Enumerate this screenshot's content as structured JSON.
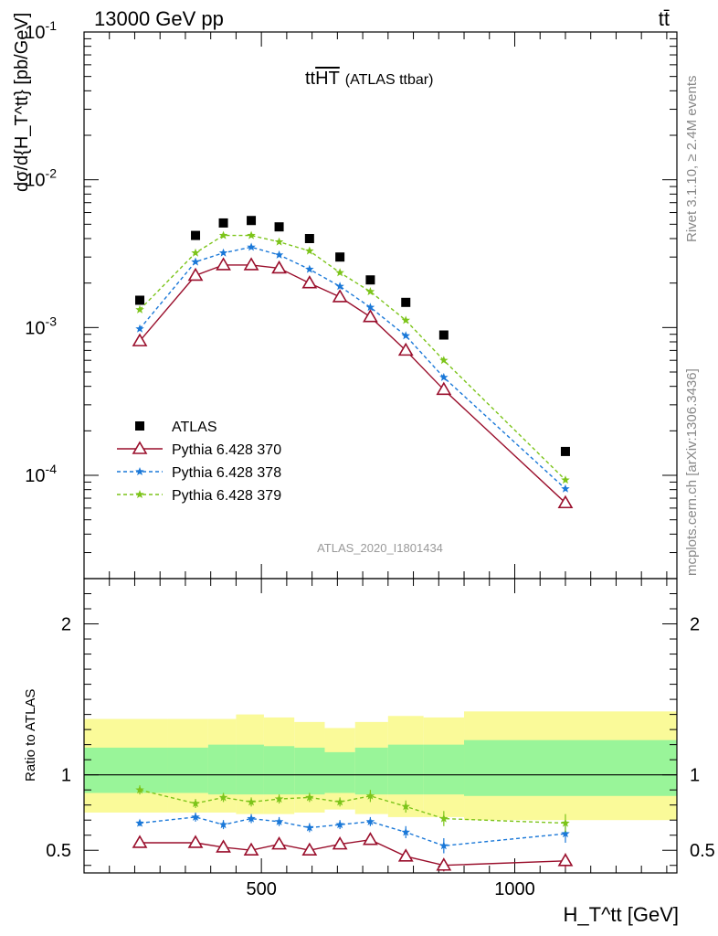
{
  "header": {
    "left": "13000 GeV pp",
    "right": "tt̄"
  },
  "plot_title": {
    "main": "tt",
    "overline": "HT",
    "sub": "(ATLAS ttbar)"
  },
  "side_text": {
    "rivet": "Rivet 3.1.10, ≥ 2.4M events",
    "mcplots": "mcplots.cern.ch [arXiv:1306.3436]"
  },
  "analysis_label": "ATLAS_2020_I1801434",
  "colors": {
    "atlas": "#000000",
    "p370": "#9a0f2c",
    "p378": "#1a78d8",
    "p379": "#7cc41a",
    "band_inner": "#99f599",
    "band_outer": "#fafa99"
  },
  "chart_data": [
    {
      "type": "scatter",
      "title": "",
      "ylabel": "dσ/d{H_T^tt} [pb/GeV]",
      "xlim": [
        150,
        1320
      ],
      "ylim": [
        2e-05,
        0.1
      ],
      "yscale": "log",
      "y_tick_labels": [
        "10^-4",
        "10^-3",
        "10^-2",
        "10^-1"
      ],
      "x": [
        260,
        370,
        425,
        480,
        535,
        595,
        655,
        715,
        785,
        860,
        1100
      ],
      "series": [
        {
          "name": "ATLAS",
          "marker": "square",
          "values": [
            0.00153,
            0.0042,
            0.0051,
            0.0053,
            0.0048,
            0.004,
            0.003,
            0.0021,
            0.00148,
            0.00089,
            0.000145
          ]
        },
        {
          "name": "Pythia 6.428 370",
          "marker": "open-triangle",
          "values": [
            0.00081,
            0.00225,
            0.00265,
            0.00265,
            0.00252,
            0.002,
            0.00161,
            0.00118,
            0.0007,
            0.00038,
            6.5e-05
          ]
        },
        {
          "name": "Pythia 6.428 378",
          "marker": "star",
          "values": [
            0.00098,
            0.00278,
            0.0032,
            0.0035,
            0.0031,
            0.00248,
            0.0019,
            0.00137,
            0.00088,
            0.00046,
            8.1e-05
          ]
        },
        {
          "name": "Pythia 6.428 379",
          "marker": "star",
          "values": [
            0.00132,
            0.0032,
            0.0042,
            0.0042,
            0.0038,
            0.0033,
            0.00235,
            0.00175,
            0.00112,
            0.0006,
            9.3e-05
          ]
        }
      ],
      "legend_position": "bottom-left"
    },
    {
      "type": "line",
      "title": "",
      "ylabel": "Ratio to ATLAS",
      "xlabel": "H_T^tt [GeV]",
      "xlim": [
        150,
        1320
      ],
      "ylim": [
        0.35,
        2.3
      ],
      "x_tick_labels": [
        "500",
        "1000"
      ],
      "y_tick_labels": [
        "0.5",
        "1",
        "2"
      ],
      "band_bins": [
        {
          "x0": 150,
          "x1": 315,
          "inner_lo": 0.88,
          "inner_hi": 1.18,
          "outer_lo": 0.75,
          "outer_hi": 1.37
        },
        {
          "x0": 315,
          "x1": 395,
          "inner_lo": 0.88,
          "inner_hi": 1.18,
          "outer_lo": 0.75,
          "outer_hi": 1.37
        },
        {
          "x0": 395,
          "x1": 450,
          "inner_lo": 0.87,
          "inner_hi": 1.2,
          "outer_lo": 0.75,
          "outer_hi": 1.37
        },
        {
          "x0": 450,
          "x1": 505,
          "inner_lo": 0.87,
          "inner_hi": 1.2,
          "outer_lo": 0.74,
          "outer_hi": 1.4
        },
        {
          "x0": 505,
          "x1": 565,
          "inner_lo": 0.87,
          "inner_hi": 1.19,
          "outer_lo": 0.74,
          "outer_hi": 1.38
        },
        {
          "x0": 565,
          "x1": 625,
          "inner_lo": 0.87,
          "inner_hi": 1.18,
          "outer_lo": 0.75,
          "outer_hi": 1.35
        },
        {
          "x0": 625,
          "x1": 685,
          "inner_lo": 0.88,
          "inner_hi": 1.15,
          "outer_lo": 0.77,
          "outer_hi": 1.31
        },
        {
          "x0": 685,
          "x1": 750,
          "inner_lo": 0.87,
          "inner_hi": 1.18,
          "outer_lo": 0.74,
          "outer_hi": 1.35
        },
        {
          "x0": 750,
          "x1": 820,
          "inner_lo": 0.87,
          "inner_hi": 1.2,
          "outer_lo": 0.72,
          "outer_hi": 1.39
        },
        {
          "x0": 820,
          "x1": 900,
          "inner_lo": 0.87,
          "inner_hi": 1.2,
          "outer_lo": 0.72,
          "outer_hi": 1.38
        },
        {
          "x0": 900,
          "x1": 1320,
          "inner_lo": 0.86,
          "inner_hi": 1.23,
          "outer_lo": 0.7,
          "outer_hi": 1.42
        }
      ],
      "x": [
        260,
        370,
        425,
        480,
        535,
        595,
        655,
        715,
        785,
        860,
        1100
      ],
      "series": [
        {
          "name": "Pythia 6.428 370",
          "marker": "open-triangle",
          "values": [
            0.55,
            0.55,
            0.52,
            0.5,
            0.54,
            0.5,
            0.54,
            0.57,
            0.46,
            0.4,
            0.43
          ],
          "errors": [
            0.01,
            0.02,
            0.02,
            0.02,
            0.02,
            0.02,
            0.02,
            0.03,
            0.03,
            0.04,
            0.05
          ]
        },
        {
          "name": "Pythia 6.428 378",
          "marker": "star",
          "values": [
            0.68,
            0.72,
            0.67,
            0.71,
            0.69,
            0.65,
            0.67,
            0.69,
            0.62,
            0.53,
            0.61
          ],
          "errors": [
            0.02,
            0.03,
            0.03,
            0.03,
            0.03,
            0.03,
            0.03,
            0.03,
            0.04,
            0.05,
            0.06
          ]
        },
        {
          "name": "Pythia 6.428 379",
          "marker": "star",
          "values": [
            0.9,
            0.81,
            0.85,
            0.82,
            0.84,
            0.85,
            0.82,
            0.86,
            0.79,
            0.71,
            0.68
          ],
          "errors": [
            0.03,
            0.03,
            0.03,
            0.03,
            0.03,
            0.03,
            0.03,
            0.04,
            0.04,
            0.05,
            0.06
          ]
        }
      ],
      "reference_line": 1
    }
  ]
}
